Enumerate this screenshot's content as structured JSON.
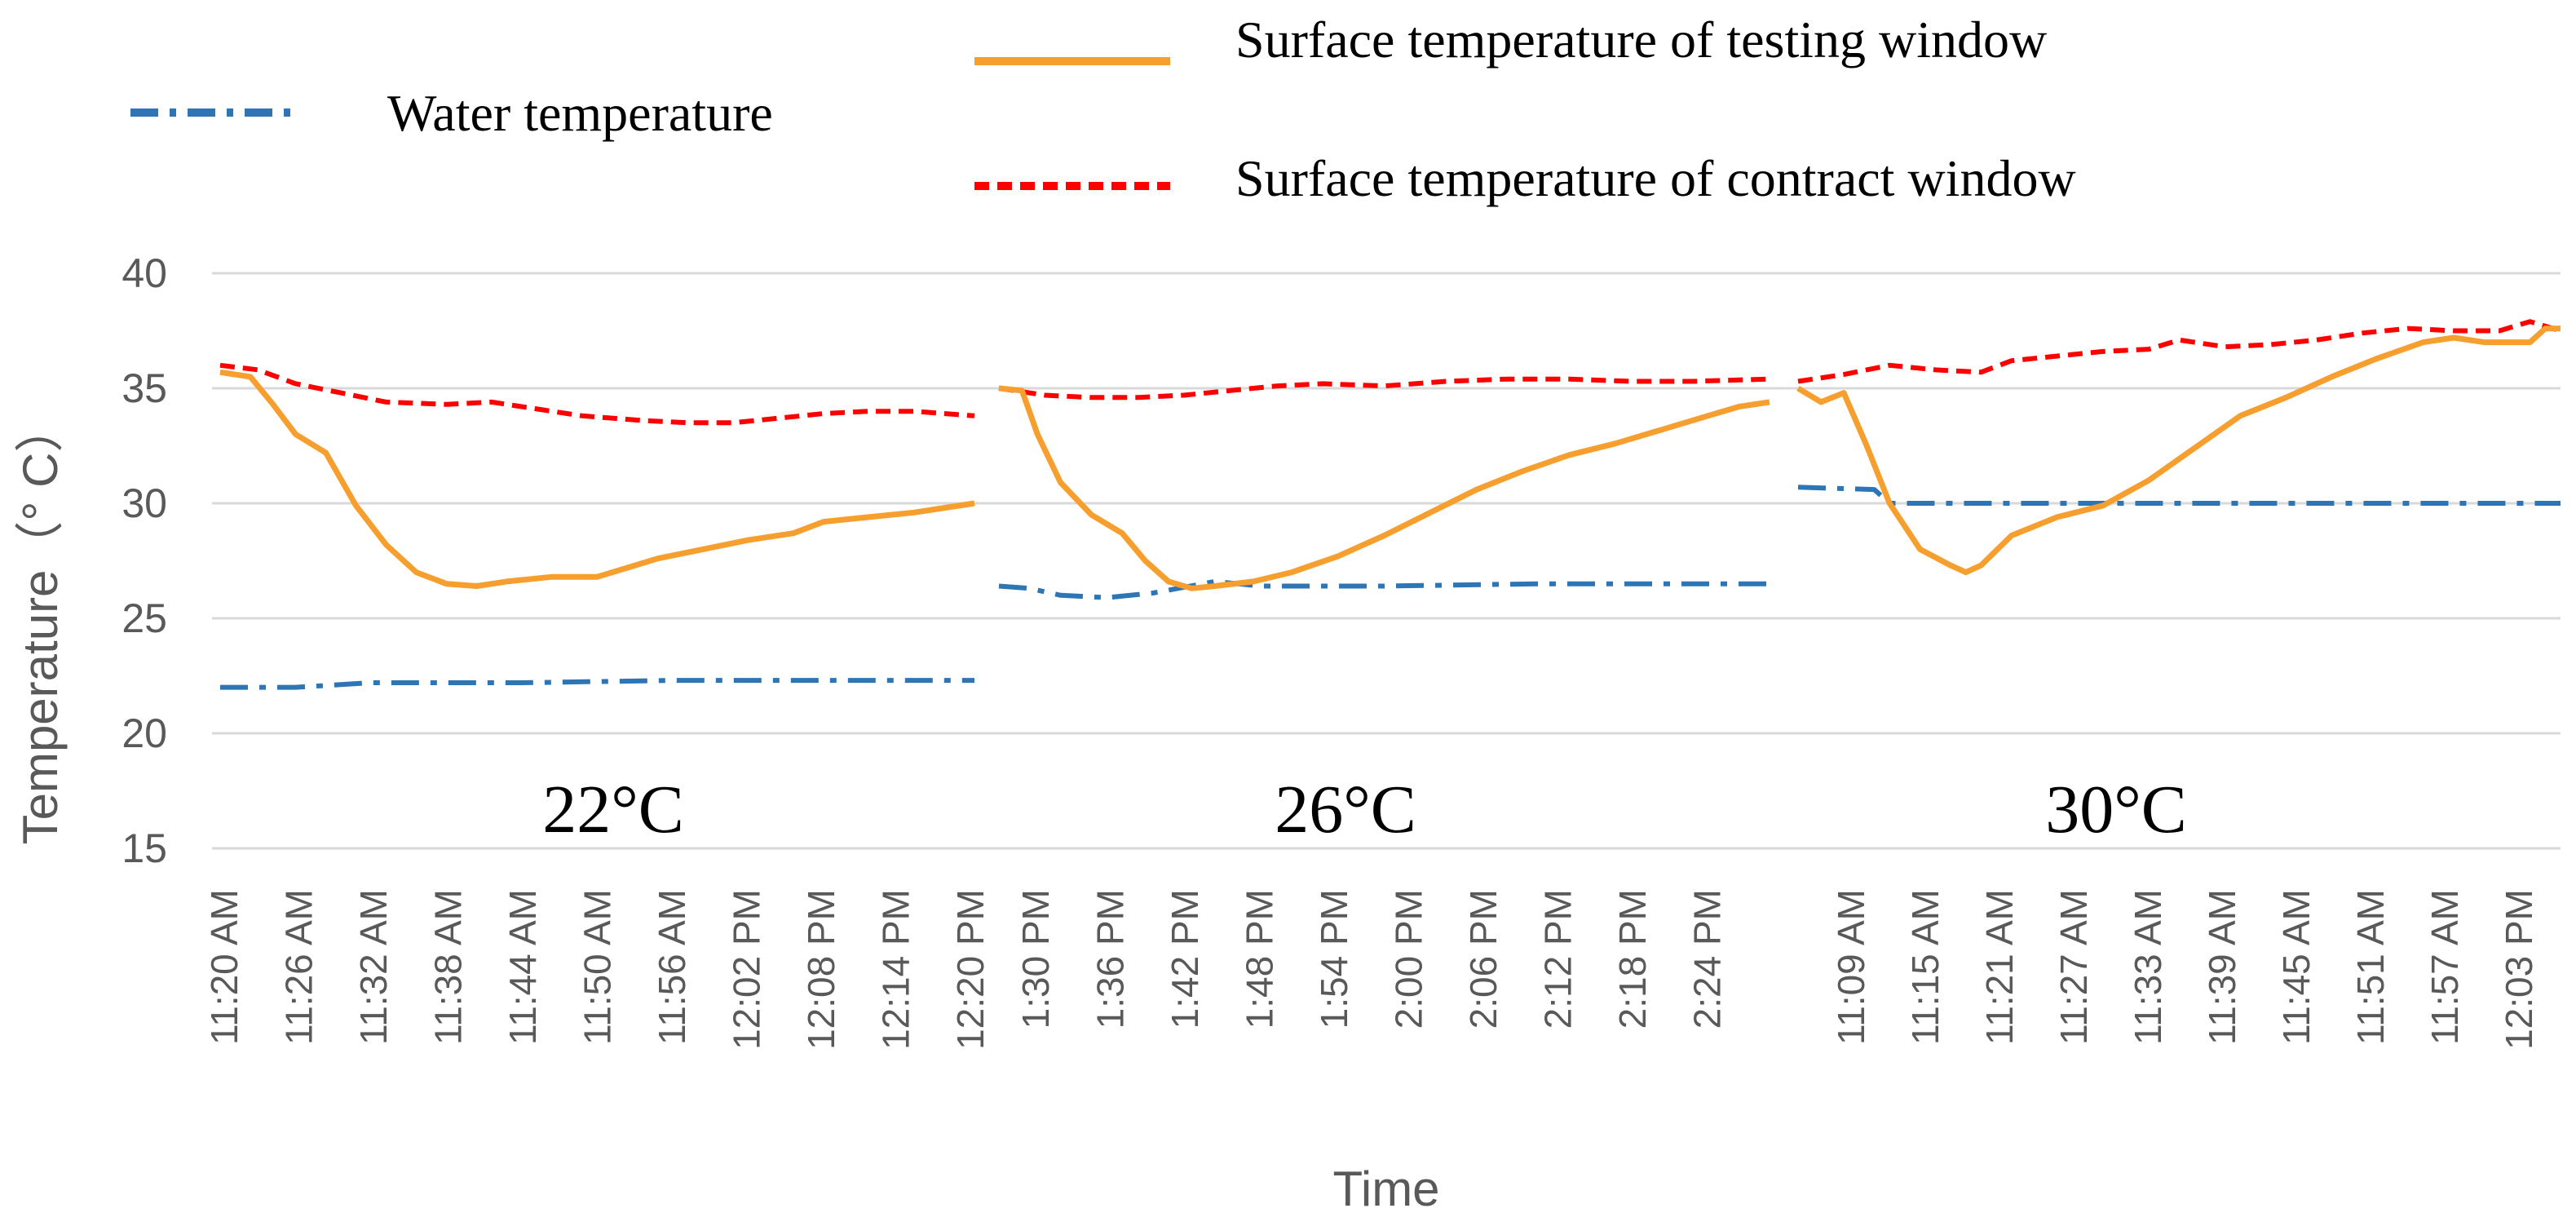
{
  "chart_data": {
    "type": "line",
    "title": "",
    "xlabel": "Time",
    "ylabel": "Temperature（° C）",
    "ylim": [
      15,
      40
    ],
    "yticks": [
      15,
      20,
      25,
      30,
      35,
      40
    ],
    "grid": true,
    "legend_position": "top",
    "colors": {
      "water": "#2E75B6",
      "testing": "#F79F2E",
      "contract": "#FF0000",
      "grid": "#D9D9D9",
      "text": "#595959"
    },
    "legend": [
      {
        "series": "water",
        "label": "Water temperature"
      },
      {
        "series": "testing",
        "label": "Surface temperature of testing window"
      },
      {
        "series": "contract",
        "label": "Surface temperature of contract window"
      }
    ],
    "segments": [
      {
        "label": "22°C",
        "ticks": [
          "11:20 AM",
          "11:26 AM",
          "11:32 AM",
          "11:38 AM",
          "11:44 AM",
          "11:50 AM",
          "11:56 AM",
          "12:02 PM",
          "12:08 PM",
          "12:14 PM",
          "12:20 PM"
        ],
        "series": {
          "water": [
            [
              0,
              22.0
            ],
            [
              10,
              22.0
            ],
            [
              20,
              22.2
            ],
            [
              40,
              22.2
            ],
            [
              60,
              22.3
            ],
            [
              80,
              22.3
            ],
            [
              100,
              22.3
            ]
          ],
          "testing": [
            [
              0,
              35.7
            ],
            [
              4,
              35.5
            ],
            [
              7,
              34.3
            ],
            [
              10,
              33.0
            ],
            [
              14,
              32.2
            ],
            [
              18,
              29.9
            ],
            [
              22,
              28.2
            ],
            [
              26,
              27.0
            ],
            [
              30,
              26.5
            ],
            [
              34,
              26.4
            ],
            [
              38,
              26.6
            ],
            [
              44,
              26.8
            ],
            [
              50,
              26.8
            ],
            [
              54,
              27.2
            ],
            [
              58,
              27.6
            ],
            [
              64,
              28.0
            ],
            [
              70,
              28.4
            ],
            [
              76,
              28.7
            ],
            [
              80,
              29.2
            ],
            [
              86,
              29.4
            ],
            [
              92,
              29.6
            ],
            [
              100,
              30.0
            ]
          ],
          "contract": [
            [
              0,
              36.0
            ],
            [
              5,
              35.8
            ],
            [
              10,
              35.2
            ],
            [
              16,
              34.8
            ],
            [
              22,
              34.4
            ],
            [
              30,
              34.3
            ],
            [
              36,
              34.4
            ],
            [
              42,
              34.1
            ],
            [
              48,
              33.8
            ],
            [
              56,
              33.6
            ],
            [
              62,
              33.5
            ],
            [
              68,
              33.5
            ],
            [
              74,
              33.7
            ],
            [
              80,
              33.9
            ],
            [
              86,
              34.0
            ],
            [
              92,
              34.0
            ],
            [
              100,
              33.8
            ]
          ]
        }
      },
      {
        "label": "26°C",
        "ticks": [
          "1:30 PM",
          "1:36 PM",
          "1:42 PM",
          "1:48 PM",
          "1:54 PM",
          "2:00 PM",
          "2:06 PM",
          "2:12 PM",
          "2:18 PM",
          "2:24 PM"
        ],
        "series": {
          "water": [
            [
              0,
              26.4
            ],
            [
              4,
              26.3
            ],
            [
              8,
              26.0
            ],
            [
              14,
              25.9
            ],
            [
              20,
              26.1
            ],
            [
              28,
              26.6
            ],
            [
              34,
              26.4
            ],
            [
              50,
              26.4
            ],
            [
              70,
              26.5
            ],
            [
              100,
              26.5
            ]
          ],
          "testing": [
            [
              0,
              35.0
            ],
            [
              3,
              34.9
            ],
            [
              5,
              33.0
            ],
            [
              8,
              30.9
            ],
            [
              12,
              29.5
            ],
            [
              16,
              28.7
            ],
            [
              19,
              27.5
            ],
            [
              22,
              26.6
            ],
            [
              25,
              26.3
            ],
            [
              28,
              26.4
            ],
            [
              33,
              26.6
            ],
            [
              38,
              27.0
            ],
            [
              44,
              27.7
            ],
            [
              50,
              28.6
            ],
            [
              56,
              29.6
            ],
            [
              62,
              30.6
            ],
            [
              68,
              31.4
            ],
            [
              74,
              32.1
            ],
            [
              80,
              32.6
            ],
            [
              86,
              33.2
            ],
            [
              92,
              33.8
            ],
            [
              96,
              34.2
            ],
            [
              100,
              34.4
            ]
          ],
          "contract": [
            [
              0,
              35.0
            ],
            [
              6,
              34.7
            ],
            [
              12,
              34.6
            ],
            [
              18,
              34.6
            ],
            [
              24,
              34.7
            ],
            [
              30,
              34.9
            ],
            [
              36,
              35.1
            ],
            [
              42,
              35.2
            ],
            [
              50,
              35.1
            ],
            [
              58,
              35.3
            ],
            [
              66,
              35.4
            ],
            [
              74,
              35.4
            ],
            [
              82,
              35.3
            ],
            [
              90,
              35.3
            ],
            [
              100,
              35.4
            ]
          ]
        }
      },
      {
        "label": "30°C",
        "ticks": [
          "11:09 AM",
          "11:15 AM",
          "11:21 AM",
          "11:27 AM",
          "11:33 AM",
          "11:39 AM",
          "11:45 AM",
          "11:51 AM",
          "11:57 AM",
          "12:03 PM"
        ],
        "series": {
          "water": [
            [
              0,
              30.7
            ],
            [
              10,
              30.6
            ],
            [
              12,
              30.0
            ],
            [
              30,
              30.0
            ],
            [
              60,
              30.0
            ],
            [
              100,
              30.0
            ]
          ],
          "testing": [
            [
              0,
              35.0
            ],
            [
              3,
              34.4
            ],
            [
              6,
              34.8
            ],
            [
              9,
              32.5
            ],
            [
              12,
              30.0
            ],
            [
              16,
              28.0
            ],
            [
              20,
              27.3
            ],
            [
              22,
              27.0
            ],
            [
              24,
              27.3
            ],
            [
              28,
              28.6
            ],
            [
              34,
              29.4
            ],
            [
              40,
              29.9
            ],
            [
              46,
              31.0
            ],
            [
              52,
              32.4
            ],
            [
              58,
              33.8
            ],
            [
              64,
              34.6
            ],
            [
              70,
              35.5
            ],
            [
              76,
              36.3
            ],
            [
              82,
              37.0
            ],
            [
              86,
              37.2
            ],
            [
              90,
              37.0
            ],
            [
              96,
              37.0
            ],
            [
              98,
              37.6
            ],
            [
              100,
              37.6
            ]
          ],
          "contract": [
            [
              0,
              35.3
            ],
            [
              6,
              35.6
            ],
            [
              12,
              36.0
            ],
            [
              18,
              35.8
            ],
            [
              24,
              35.7
            ],
            [
              28,
              36.2
            ],
            [
              34,
              36.4
            ],
            [
              40,
              36.6
            ],
            [
              46,
              36.7
            ],
            [
              50,
              37.1
            ],
            [
              56,
              36.8
            ],
            [
              62,
              36.9
            ],
            [
              68,
              37.1
            ],
            [
              74,
              37.4
            ],
            [
              80,
              37.6
            ],
            [
              86,
              37.5
            ],
            [
              92,
              37.5
            ],
            [
              96,
              37.9
            ],
            [
              100,
              37.5
            ]
          ]
        }
      }
    ]
  }
}
